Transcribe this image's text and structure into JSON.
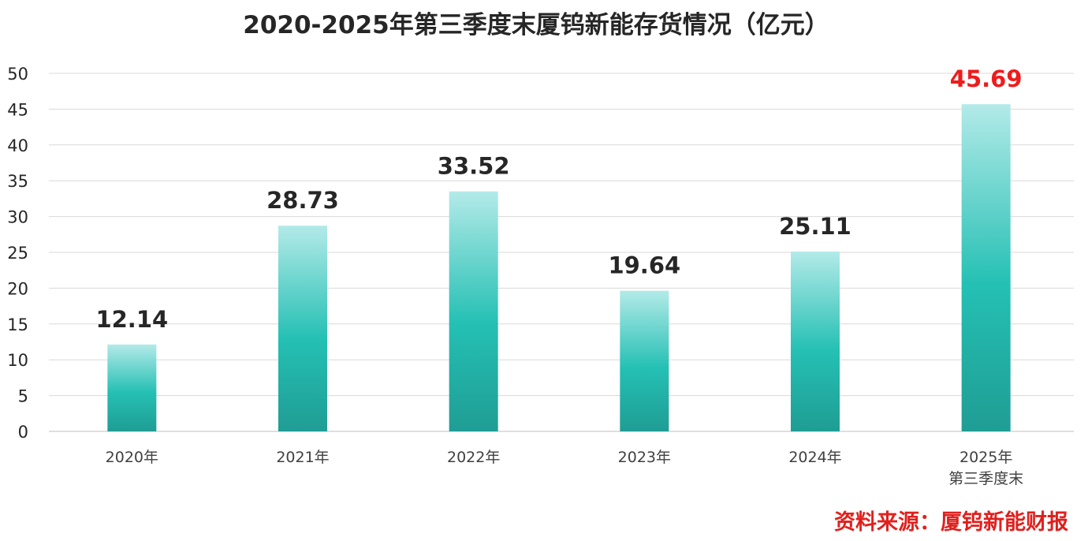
{
  "chart_data": {
    "type": "bar",
    "title": "2020-2025年第三季度末厦钨新能存货情况（亿元）",
    "categories": [
      [
        "2020年"
      ],
      [
        "2021年"
      ],
      [
        "2022年"
      ],
      [
        "2023年"
      ],
      [
        "2024年"
      ],
      [
        "2025年",
        "第三季度末"
      ]
    ],
    "values": [
      12.14,
      28.73,
      33.52,
      19.64,
      25.11,
      45.69
    ],
    "data_labels": [
      "12.14",
      "28.73",
      "33.52",
      "19.64",
      "25.11",
      "45.69"
    ],
    "highlight_index": 5,
    "yticks": [
      "0",
      "5",
      "10",
      "15",
      "20",
      "25",
      "30",
      "35",
      "40",
      "45",
      "50"
    ],
    "ylim": [
      0,
      50
    ],
    "grid": true,
    "legend": "none",
    "colors": {
      "bar_top": "#b3eae8",
      "bar_mid": "#25c0b4",
      "bar_bottom": "#1f9d94",
      "highlight_label": "#ee1c1c",
      "source_text": "#e0201d"
    }
  },
  "source_note": "资料来源：厦钨新能财报"
}
